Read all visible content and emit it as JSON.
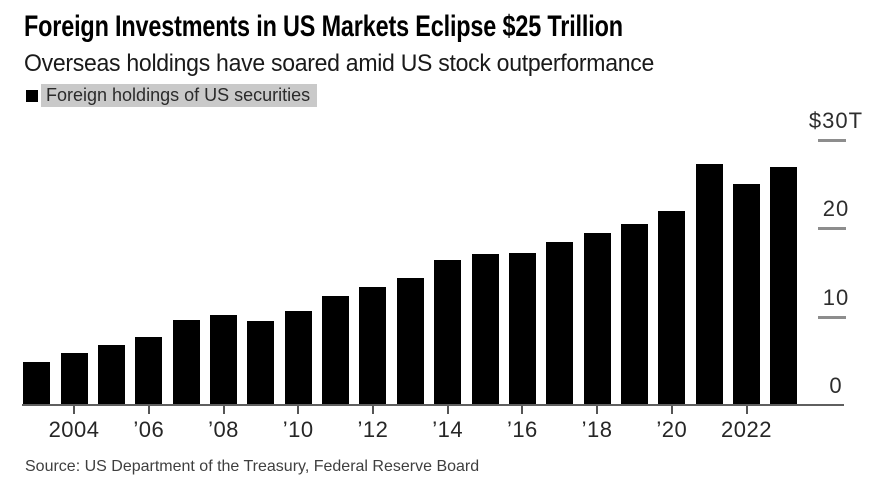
{
  "header": {
    "title": "Foreign Investments in US Markets Eclipse $25 Trillion",
    "subtitle": "Overseas holdings have soared amid US stock outperformance"
  },
  "legend": {
    "swatch_color": "#000000",
    "highlight_color": "#c9c9c9",
    "label": "Foreign holdings of US securities"
  },
  "chart_data": {
    "type": "bar",
    "title": "Foreign Investments in US Markets Eclipse $25 Trillion",
    "subtitle": "Overseas holdings have soared amid US stock outperformance",
    "series_name": "Foreign holdings of US securities",
    "unit": "USD trillions",
    "x": [
      2003,
      2004,
      2005,
      2006,
      2007,
      2008,
      2009,
      2010,
      2011,
      2012,
      2013,
      2014,
      2015,
      2016,
      2017,
      2018,
      2019,
      2020,
      2021,
      2022,
      2023
    ],
    "values": [
      5.0,
      6.0,
      6.9,
      7.8,
      9.7,
      10.3,
      9.6,
      10.7,
      12.4,
      13.4,
      14.5,
      16.5,
      17.2,
      17.3,
      18.5,
      19.5,
      20.6,
      22.0,
      27.3,
      25.1,
      27.0
    ],
    "bar_color": "#000000",
    "ylim": [
      0,
      30
    ],
    "yticks": [
      {
        "value": 30,
        "label": "$30T"
      },
      {
        "value": 20,
        "label": "20"
      },
      {
        "value": 10,
        "label": "10"
      },
      {
        "value": 0,
        "label": "0"
      }
    ],
    "xticks": [
      {
        "year": 2004,
        "label": "2004"
      },
      {
        "year": 2006,
        "label": "’06"
      },
      {
        "year": 2008,
        "label": "’08"
      },
      {
        "year": 2010,
        "label": "’10"
      },
      {
        "year": 2012,
        "label": "’12"
      },
      {
        "year": 2014,
        "label": "’14"
      },
      {
        "year": 2016,
        "label": "’16"
      },
      {
        "year": 2018,
        "label": "’18"
      },
      {
        "year": 2020,
        "label": "’20"
      },
      {
        "year": 2022,
        "label": "2022"
      }
    ],
    "grid": false,
    "yaxis_side": "right",
    "legend_position": "top-left"
  },
  "source": "Source: US Department of the Treasury, Federal Reserve Board"
}
